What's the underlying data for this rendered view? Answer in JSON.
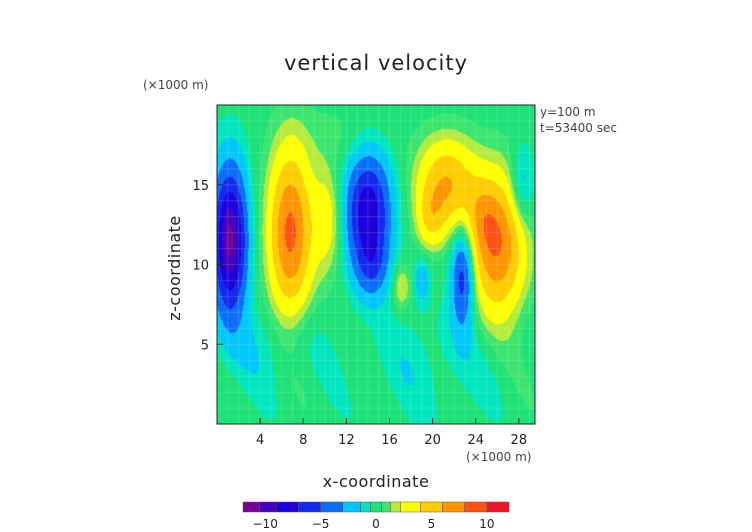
{
  "chart_data": {
    "type": "heatmap",
    "title": "vertical velocity",
    "xlabel": "x-coordinate",
    "ylabel": "z-coordinate",
    "x_unit": "(×1000 m)",
    "y_unit": "(×1000 m)",
    "annotations": [
      "y=100 m",
      "t=53400 sec"
    ],
    "xlim": [
      0,
      29.5
    ],
    "ylim": [
      0,
      20
    ],
    "x_ticks": [
      "4",
      "8",
      "12",
      "16",
      "20",
      "24",
      "28"
    ],
    "x_tick_values": [
      4,
      8,
      12,
      16,
      20,
      24,
      28
    ],
    "y_ticks": [
      "5",
      "10",
      "15"
    ],
    "y_tick_values": [
      5,
      10,
      15
    ],
    "colorbar": {
      "range": [
        -12,
        12
      ],
      "tick_labels": [
        "−10",
        "−5",
        "0",
        "5",
        "10"
      ],
      "tick_values": [
        -10,
        -5,
        0,
        5,
        10
      ]
    },
    "features": [
      {
        "x": 1.2,
        "z": 11.5,
        "amp": -11.0,
        "sx": 1.1,
        "sz": 3.2
      },
      {
        "x": 6.8,
        "z": 12.0,
        "amp": 8.5,
        "sx": 1.4,
        "sz": 3.6
      },
      {
        "x": 10.3,
        "z": 12.8,
        "amp": 3.0,
        "sx": 1.0,
        "sz": 2.3
      },
      {
        "x": 14.0,
        "z": 13.3,
        "amp": -8.5,
        "sx": 1.5,
        "sz": 2.6
      },
      {
        "x": 14.4,
        "z": 9.8,
        "amp": -3.0,
        "sx": 1.1,
        "sz": 1.4
      },
      {
        "x": 17.1,
        "z": 8.6,
        "amp": 2.5,
        "sx": 0.6,
        "sz": 1.0
      },
      {
        "x": 19.8,
        "z": 12.8,
        "amp": 3.0,
        "sx": 0.9,
        "sz": 1.3
      },
      {
        "x": 21.3,
        "z": 15.0,
        "amp": 6.0,
        "sx": 1.9,
        "sz": 2.0
      },
      {
        "x": 22.8,
        "z": 9.3,
        "amp": -6.5,
        "sx": 0.75,
        "sz": 2.2
      },
      {
        "x": 26.0,
        "z": 11.2,
        "amp": 8.0,
        "sx": 1.8,
        "sz": 3.0
      },
      {
        "x": 24.6,
        "z": 13.0,
        "amp": 2.0,
        "sx": 1.0,
        "sz": 1.5
      },
      {
        "x": 28.3,
        "z": 14.8,
        "amp": -2.8,
        "sx": 0.8,
        "sz": 1.8
      },
      {
        "x": 19.0,
        "z": 9.0,
        "amp": -2.5,
        "sx": 0.5,
        "sz": 1.0
      },
      {
        "x": 5.0,
        "z": 5.0,
        "amp": -1.2,
        "sx": 3.0,
        "sz": 2.0
      },
      {
        "x": 20.0,
        "z": 4.0,
        "amp": -1.0,
        "sx": 4.0,
        "sz": 2.5
      },
      {
        "x": 12.0,
        "z": 18.0,
        "amp": 0.8,
        "sx": 3.0,
        "sz": 1.5
      }
    ]
  }
}
